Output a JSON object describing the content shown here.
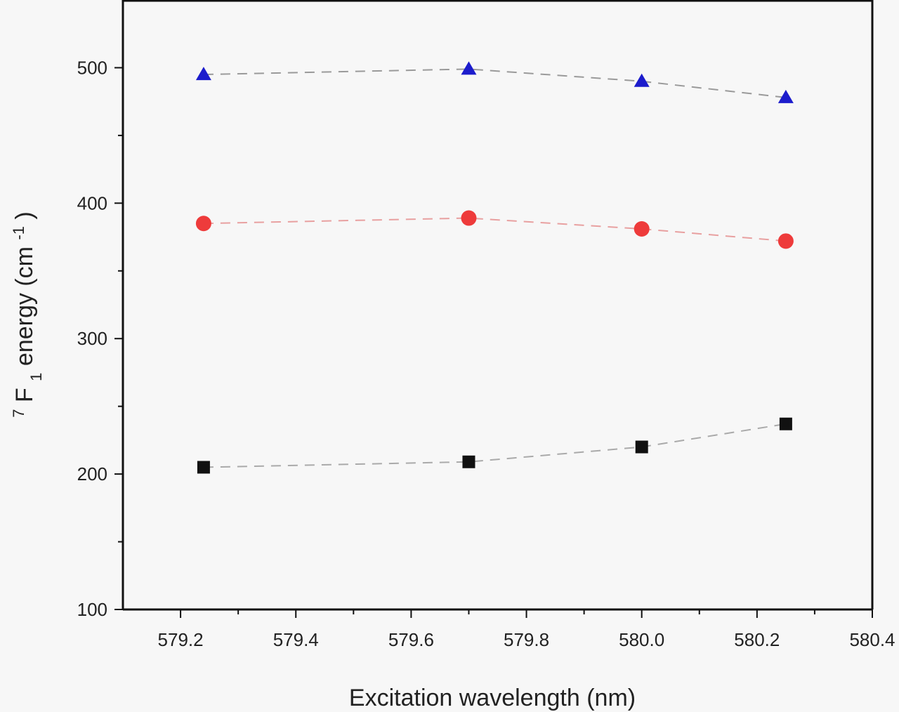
{
  "chart_data": {
    "type": "scatter",
    "xlabel": "Excitation wavelength (nm)",
    "ylabel_parts": {
      "superscript_7": "7",
      "letter_F": "F",
      "subscript_1": "1",
      "text_mid": " energy (cm",
      "superscript_neg1": "-1",
      "text_end": ")"
    },
    "xlim": [
      579.1,
      580.4
    ],
    "ylim": [
      100,
      550
    ],
    "x_ticks": [
      579.2,
      579.4,
      579.6,
      579.8,
      580.0,
      580.2,
      580.4
    ],
    "x_tick_labels": [
      "579.2",
      "579.4",
      "579.6",
      "579.8",
      "580.0",
      "580.2",
      "580.4"
    ],
    "y_ticks": [
      100,
      200,
      300,
      400,
      500
    ],
    "y_tick_labels": [
      "100",
      "200",
      "300",
      "400",
      "500"
    ],
    "grid": false,
    "series": [
      {
        "marker": "triangle",
        "color": "#1c1ccc",
        "line_color": "#9a9a9a",
        "points": [
          [
            579.24,
            495
          ],
          [
            579.7,
            499
          ],
          [
            580.0,
            490
          ],
          [
            580.25,
            478
          ]
        ]
      },
      {
        "marker": "circle",
        "color": "#ee3b3b",
        "line_color": "#e8a0a0",
        "points": [
          [
            579.24,
            385
          ],
          [
            579.7,
            389
          ],
          [
            580.0,
            381
          ],
          [
            580.25,
            372
          ]
        ]
      },
      {
        "marker": "square",
        "color": "#111111",
        "line_color": "#aaaaaa",
        "points": [
          [
            579.24,
            205
          ],
          [
            579.7,
            209
          ],
          [
            580.0,
            220
          ],
          [
            580.25,
            237
          ]
        ]
      }
    ]
  }
}
